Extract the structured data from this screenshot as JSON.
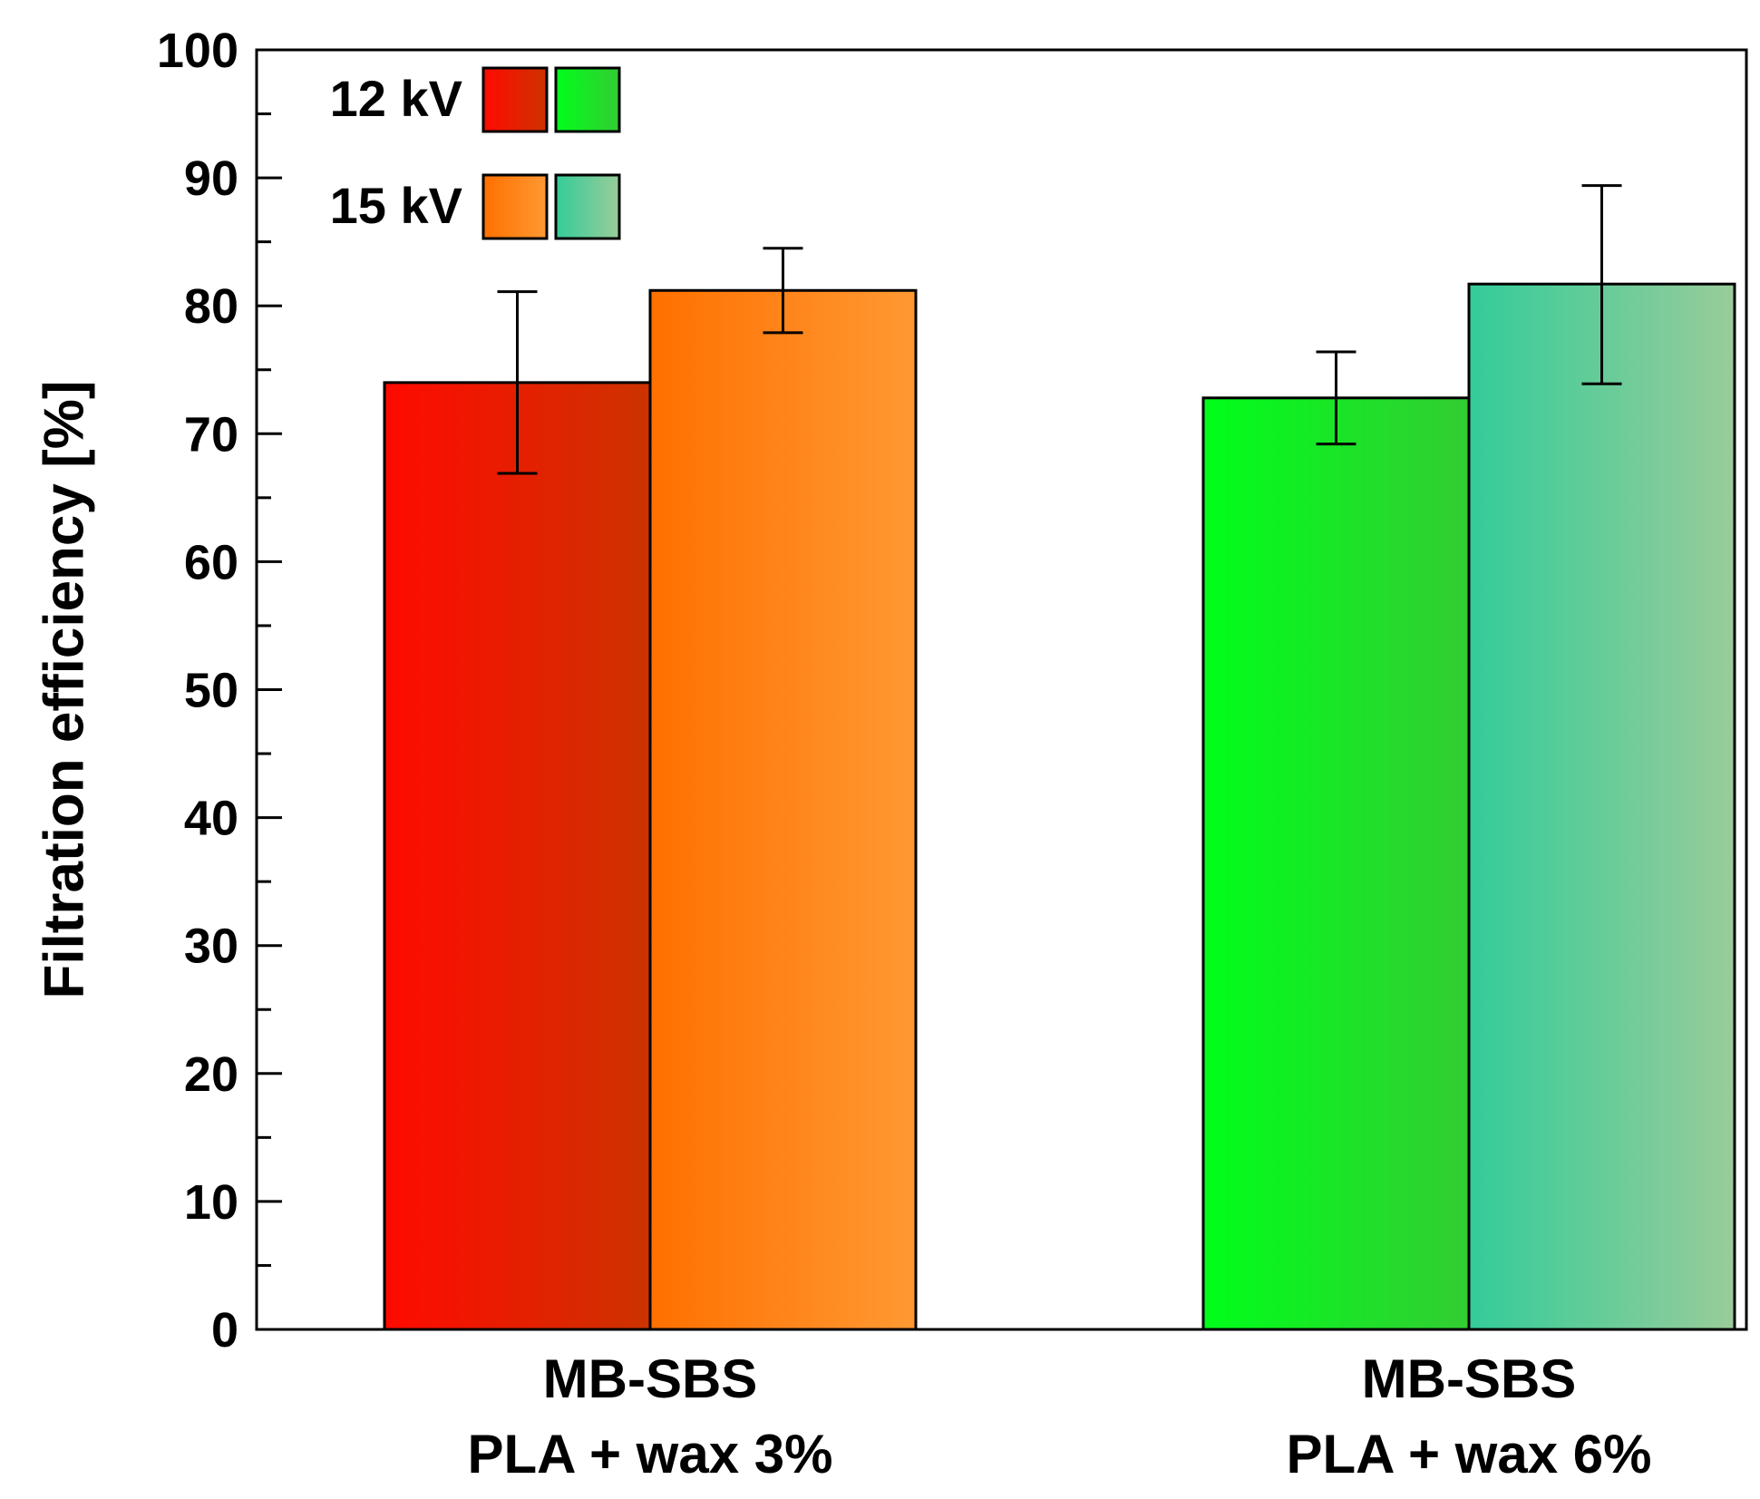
{
  "chart_data": {
    "type": "bar",
    "title": "",
    "xlabel": "",
    "ylabel": "Filtration efficiency [%]",
    "ylim": [
      0,
      100
    ],
    "yticks": [
      0,
      10,
      20,
      30,
      40,
      50,
      60,
      70,
      80,
      90,
      100
    ],
    "grid": false,
    "legend_position": "top-left",
    "categories": [
      {
        "line1": "MB-SBS",
        "line2": "PLA + wax 3%"
      },
      {
        "line1": "MB-SBS",
        "line2": "PLA + wax 6%"
      }
    ],
    "legend": [
      {
        "label": "12 kV"
      },
      {
        "label": "15 kV"
      }
    ],
    "series": [
      {
        "name": "12 kV",
        "values": [
          74,
          72.8
        ],
        "error_low": [
          66.9,
          69.2
        ],
        "error_high": [
          81.1,
          76.4
        ],
        "colors": [
          [
            "#ff0a00",
            "#cc3300"
          ],
          [
            "#00ff1a",
            "#33cc33"
          ]
        ]
      },
      {
        "name": "15 kV",
        "values": [
          81.2,
          81.7
        ],
        "error_low": [
          77.9,
          73.9
        ],
        "error_high": [
          84.5,
          89.4
        ],
        "colors": [
          [
            "#ff7000",
            "#ff9933"
          ],
          [
            "#33cc99",
            "#99cc99"
          ]
        ]
      }
    ]
  }
}
